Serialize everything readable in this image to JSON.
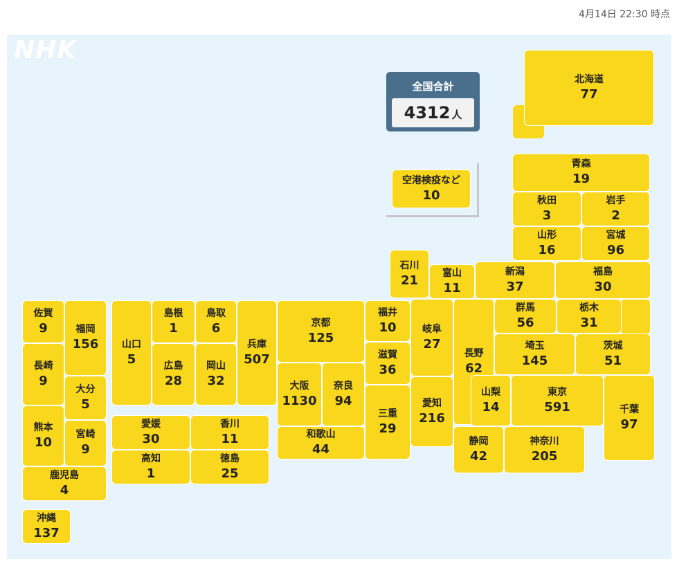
{
  "timestamp": "4月14日 22:30 時点",
  "logo": "NHK",
  "total": {
    "title": "全国合計",
    "value": "4312",
    "unit": "人"
  },
  "prefectures": {
    "hokkaido": {
      "name": "北海道",
      "value": "77"
    },
    "quarantine": {
      "name": "空港検疫など",
      "value": "10"
    },
    "aomori": {
      "name": "青森",
      "value": "19"
    },
    "akita": {
      "name": "秋田",
      "value": "3"
    },
    "iwate": {
      "name": "岩手",
      "value": "2"
    },
    "yamagata": {
      "name": "山形",
      "value": "16"
    },
    "miyagi": {
      "name": "宮城",
      "value": "96"
    },
    "ishikawa": {
      "name": "石川",
      "value": "21"
    },
    "toyama": {
      "name": "富山",
      "value": "11"
    },
    "niigata": {
      "name": "新潟",
      "value": "37"
    },
    "fukushima": {
      "name": "福島",
      "value": "30"
    },
    "saga": {
      "name": "佐賀",
      "value": "9"
    },
    "fukuoka": {
      "name": "福岡",
      "value": "156"
    },
    "yamaguchi": {
      "name": "山口",
      "value": "5"
    },
    "shimane": {
      "name": "島根",
      "value": "1"
    },
    "tottori": {
      "name": "鳥取",
      "value": "6"
    },
    "hyogo": {
      "name": "兵庫",
      "value": "507"
    },
    "kyoto": {
      "name": "京都",
      "value": "125"
    },
    "fukui": {
      "name": "福井",
      "value": "10"
    },
    "gifu": {
      "name": "岐阜",
      "value": "27"
    },
    "nagano": {
      "name": "長野",
      "value": "62"
    },
    "gunma": {
      "name": "群馬",
      "value": "56"
    },
    "tochigi": {
      "name": "栃木",
      "value": "31"
    },
    "nagasaki": {
      "name": "長崎",
      "value": "9"
    },
    "hiroshima": {
      "name": "広島",
      "value": "28"
    },
    "okayama": {
      "name": "岡山",
      "value": "32"
    },
    "osaka": {
      "name": "大阪",
      "value": "1130"
    },
    "nara": {
      "name": "奈良",
      "value": "94"
    },
    "shiga": {
      "name": "滋賀",
      "value": "36"
    },
    "saitama": {
      "name": "埼玉",
      "value": "145"
    },
    "ibaraki": {
      "name": "茨城",
      "value": "51"
    },
    "oita": {
      "name": "大分",
      "value": "5"
    },
    "yamanashi": {
      "name": "山梨",
      "value": "14"
    },
    "tokyo": {
      "name": "東京",
      "value": "591"
    },
    "chiba": {
      "name": "千葉",
      "value": "97"
    },
    "aichi": {
      "name": "愛知",
      "value": "216"
    },
    "mie": {
      "name": "三重",
      "value": "29"
    },
    "ehime": {
      "name": "愛媛",
      "value": "30"
    },
    "kagawa": {
      "name": "香川",
      "value": "11"
    },
    "kumamoto": {
      "name": "熊本",
      "value": "10"
    },
    "miyazaki": {
      "name": "宮崎",
      "value": "9"
    },
    "wakayama": {
      "name": "和歌山",
      "value": "44"
    },
    "shizuoka": {
      "name": "静岡",
      "value": "42"
    },
    "kanagawa": {
      "name": "神奈川",
      "value": "205"
    },
    "kochi": {
      "name": "高知",
      "value": "1"
    },
    "tokushima": {
      "name": "徳島",
      "value": "25"
    },
    "kagoshima": {
      "name": "鹿児島",
      "value": "4"
    },
    "okinawa": {
      "name": "沖縄",
      "value": "137"
    }
  },
  "colors": {
    "tile": "#f9d71c",
    "background": "#e8f4fb",
    "total_header": "#4a6f8c"
  }
}
